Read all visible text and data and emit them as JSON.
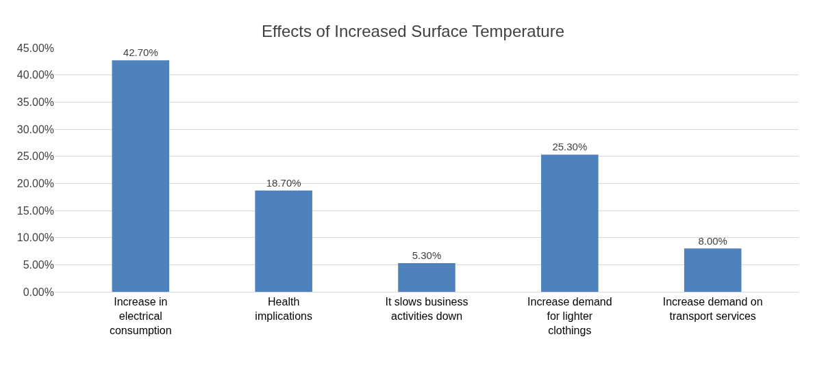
{
  "chart_data": {
    "type": "bar",
    "title": "Effects of Increased Surface Temperature",
    "categories": [
      "Increase in electrical consumption",
      "Health implications",
      "It slows business activities down",
      "Increase demand for lighter clothings",
      "Increase demand on transport services"
    ],
    "values": [
      42.7,
      18.7,
      5.3,
      25.3,
      8.0
    ],
    "value_labels": [
      "42.70%",
      "18.70%",
      "5.30%",
      "25.30%",
      "8.00%"
    ],
    "color": "#4f81bd",
    "ylim": [
      0,
      45
    ],
    "yticks": [
      {
        "value": 0,
        "label": "0.00%"
      },
      {
        "value": 5,
        "label": "5.00%"
      },
      {
        "value": 10,
        "label": "10.00%"
      },
      {
        "value": 15,
        "label": "15.00%"
      },
      {
        "value": 20,
        "label": "20.00%"
      },
      {
        "value": 25,
        "label": "25.00%"
      },
      {
        "value": 30,
        "label": "30.00%"
      },
      {
        "value": 35,
        "label": "35.00%"
      },
      {
        "value": 40,
        "label": "40.00%"
      },
      {
        "value": 45,
        "label": "45.00%"
      }
    ],
    "grid": "y"
  }
}
